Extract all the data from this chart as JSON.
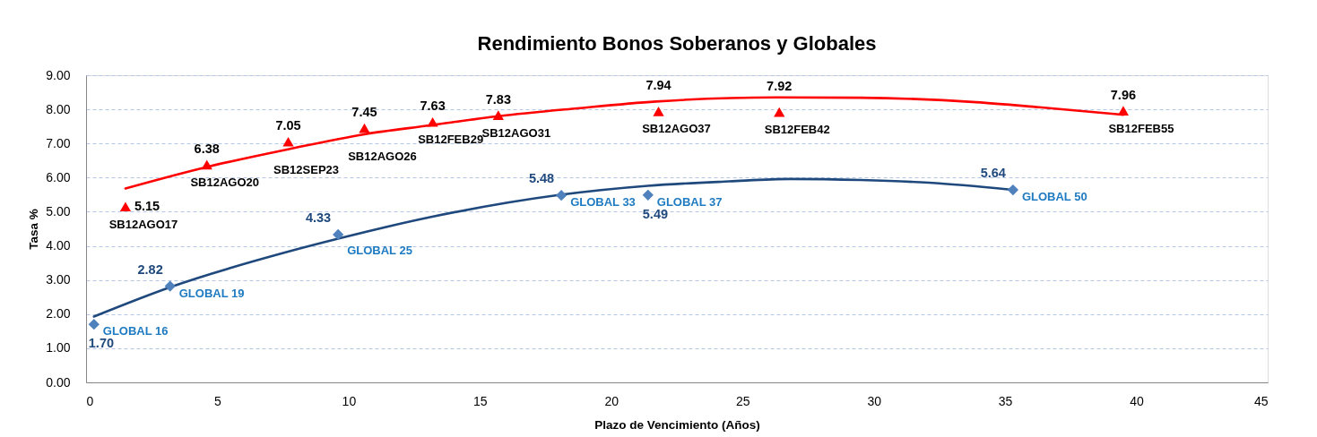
{
  "chart_data": {
    "type": "scatter",
    "title": "Rendimiento Bonos Soberanos y Globales",
    "xlabel": "Plazo de Vencimiento (Años)",
    "ylabel": "Tasa %",
    "xlim": [
      0,
      45
    ],
    "xticks": [
      0,
      5,
      10,
      15,
      20,
      25,
      30,
      35,
      40,
      45
    ],
    "ylim": [
      0,
      9
    ],
    "yticks": [
      {
        "value": 0,
        "label": "0.00"
      },
      {
        "value": 1,
        "label": "1.00"
      },
      {
        "value": 2,
        "label": "2.00"
      },
      {
        "value": 3,
        "label": "3.00"
      },
      {
        "value": 4,
        "label": "4.00"
      },
      {
        "value": 5,
        "label": "5.00"
      },
      {
        "value": 6,
        "label": "6.00"
      },
      {
        "value": 7,
        "label": "7.00"
      },
      {
        "value": 8,
        "label": "8.00"
      },
      {
        "value": 9,
        "label": "9.00"
      }
    ],
    "grid": "y",
    "series": [
      {
        "color": "#ff0000",
        "marker": "triangle",
        "x": [
          1.5,
          4.6,
          7.7,
          10.6,
          13.2,
          15.7,
          21.8,
          26.4,
          39.5
        ],
        "values": [
          5.15,
          6.38,
          7.05,
          7.45,
          7.63,
          7.83,
          7.94,
          7.92,
          7.96
        ],
        "value_labels": [
          "5.15",
          "6.38",
          "7.05",
          "7.45",
          "7.63",
          "7.83",
          "7.94",
          "7.92",
          "7.96"
        ]
      },
      {
        "color": "#4f81bd",
        "marker": "diamond",
        "x": [
          0.3,
          3.2,
          9.6,
          18.1,
          21.4,
          35.3
        ],
        "values": [
          1.7,
          2.82,
          4.33,
          5.48,
          5.49,
          5.64
        ],
        "value_labels": [
          "1.70",
          "2.82",
          "4.33",
          "5.48",
          "5.49",
          "5.64"
        ]
      },
      {
        "type": "line",
        "color": "#ff0000",
        "x": [
          1.5,
          4.6,
          7.7,
          10.6,
          13.1,
          15.7,
          18.7,
          21.7,
          26.3,
          29.5,
          33.9,
          36.3,
          39.5
        ],
        "values": [
          5.68,
          6.31,
          6.83,
          7.27,
          7.53,
          7.8,
          8.03,
          8.23,
          8.35,
          8.34,
          8.21,
          8.06,
          7.84
        ]
      },
      {
        "type": "line",
        "color": "#1f497d",
        "x": [
          0.3,
          3.2,
          7.6,
          9.6,
          13.1,
          18.0,
          21.4,
          24.5,
          26.8,
          29.5,
          32.1,
          35.2
        ],
        "values": [
          1.93,
          2.79,
          3.81,
          4.21,
          4.84,
          5.49,
          5.76,
          5.89,
          5.96,
          5.93,
          5.85,
          5.65
        ]
      }
    ],
    "annotations": [
      {
        "text": "SB12AGO17",
        "x": 1.5,
        "y": 5.15
      },
      {
        "text": "SB12AGO20",
        "x": 4.6,
        "y": 6.38
      },
      {
        "text": "SB12SEP23",
        "x": 7.7,
        "y": 7.05
      },
      {
        "text": "SB12AGO26",
        "x": 10.6,
        "y": 7.45
      },
      {
        "text": "SB12FEB29",
        "x": 13.2,
        "y": 7.63
      },
      {
        "text": "SB12AGO31",
        "x": 15.7,
        "y": 7.83
      },
      {
        "text": "SB12AGO37",
        "x": 21.8,
        "y": 7.94
      },
      {
        "text": "SB12FEB42",
        "x": 26.4,
        "y": 7.92
      },
      {
        "text": "SB12FEB55",
        "x": 39.5,
        "y": 7.96
      },
      {
        "text": "GLOBAL 16",
        "x": 0.3,
        "y": 1.7
      },
      {
        "text": "GLOBAL 19",
        "x": 3.2,
        "y": 2.82
      },
      {
        "text": "GLOBAL 25",
        "x": 9.6,
        "y": 4.33
      },
      {
        "text": "GLOBAL 33",
        "x": 18.1,
        "y": 5.48
      },
      {
        "text": "GLOBAL 37",
        "x": 21.4,
        "y": 5.49
      },
      {
        "text": "GLOBAL 50",
        "x": 35.3,
        "y": 5.64
      }
    ]
  }
}
